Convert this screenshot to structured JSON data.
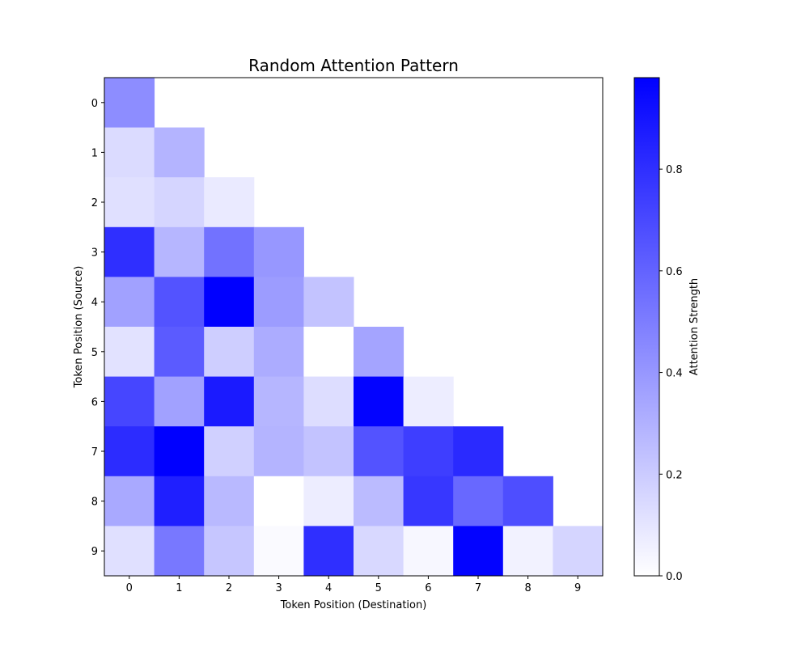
{
  "chart_data": {
    "type": "heatmap",
    "title": "Random Attention Pattern",
    "xlabel": "Token Position (Destination)",
    "ylabel": "Token Position (Source)",
    "x_ticks": [
      "0",
      "1",
      "2",
      "3",
      "4",
      "5",
      "6",
      "7",
      "8",
      "9"
    ],
    "y_ticks": [
      "0",
      "1",
      "2",
      "3",
      "4",
      "5",
      "6",
      "7",
      "8",
      "9"
    ],
    "mask": "causal (lower triangle incl. diagonal)",
    "colormap": {
      "low": "#ffffff",
      "high": "#0000ff"
    },
    "colorbar": {
      "label": "Attention Strength",
      "vmin": 0.0,
      "vmax": 0.98,
      "ticks": [
        0.0,
        0.2,
        0.4,
        0.6,
        0.8
      ],
      "tick_labels": [
        "0.0",
        "0.2",
        "0.4",
        "0.6",
        "0.8"
      ]
    },
    "values": [
      [
        0.44
      ],
      [
        0.14,
        0.29
      ],
      [
        0.12,
        0.16,
        0.08
      ],
      [
        0.8,
        0.28,
        0.54,
        0.4
      ],
      [
        0.36,
        0.66,
        0.98,
        0.38,
        0.23
      ],
      [
        0.11,
        0.63,
        0.19,
        0.32,
        0.0,
        0.35
      ],
      [
        0.71,
        0.36,
        0.88,
        0.28,
        0.13,
        0.97,
        0.07
      ],
      [
        0.81,
        0.98,
        0.18,
        0.29,
        0.23,
        0.66,
        0.74,
        0.82
      ],
      [
        0.33,
        0.86,
        0.27,
        0.0,
        0.07,
        0.26,
        0.77,
        0.58,
        0.68
      ],
      [
        0.12,
        0.52,
        0.22,
        0.02,
        0.8,
        0.15,
        0.03,
        0.97,
        0.05,
        0.16
      ]
    ]
  }
}
